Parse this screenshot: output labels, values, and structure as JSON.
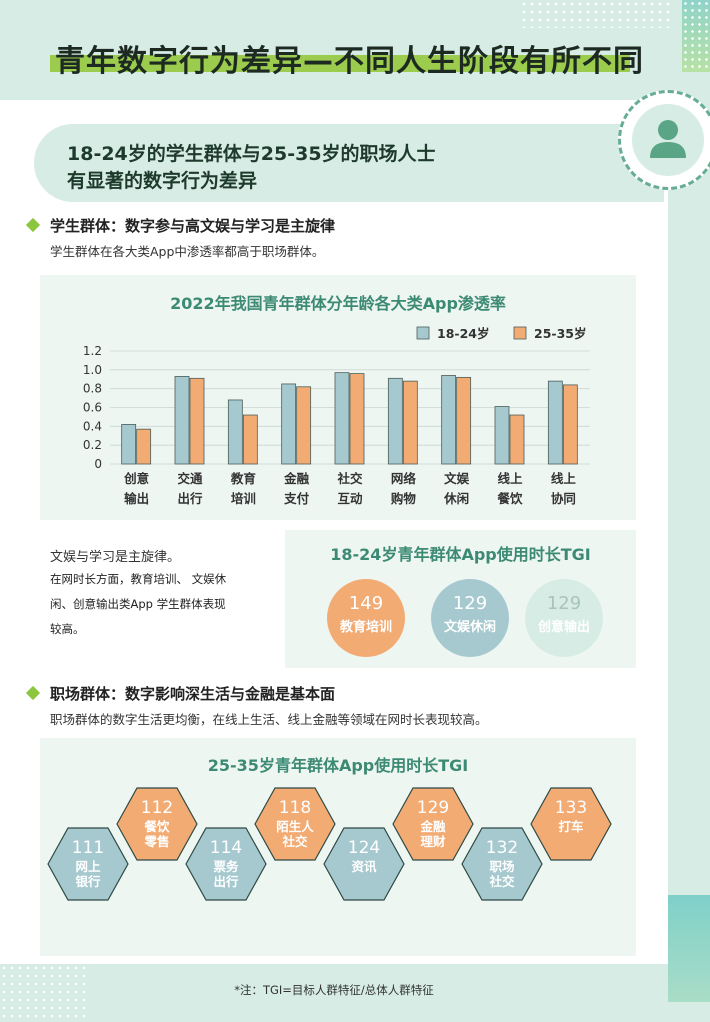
{
  "header": {
    "title": "青年数字行为差异—不同人生阶段有所不同"
  },
  "heading": {
    "line1": "18-24岁的学生群体与25-35岁的职场人士",
    "line2": "有显著的数字行为差异"
  },
  "students": {
    "title": "学生群体：数字参与高文娱与学习是主旋律",
    "text": "学生群体在各大类App中渗透率都高于职场群体。",
    "note_title": "文娱与学习是主旋律。",
    "note_lines": [
      "在网时长方面，教育培训、 文娱休",
      "闲、创意输出类App 学生群体表现",
      "较高。"
    ]
  },
  "workers": {
    "title": "职场群体：数字影响深生活与金融是基本面",
    "text": "职场群体的数字生活更均衡，在线上生活、线上金融等领域在网时长表现较高。"
  },
  "chart_data": {
    "type": "bar",
    "title": "2022年我国青年群体分年龄各大类App渗透率",
    "categories": [
      [
        "创意",
        "输出"
      ],
      [
        "交通",
        "出行"
      ],
      [
        "教育",
        "培训"
      ],
      [
        "金融",
        "支付"
      ],
      [
        "社交",
        "互动"
      ],
      [
        "网络",
        "购物"
      ],
      [
        "文娱",
        "休闲"
      ],
      [
        "线上",
        "餐饮"
      ],
      [
        "线上",
        "协同"
      ]
    ],
    "series": [
      {
        "name": "18-24岁",
        "color": "#a6c9cf",
        "values": [
          0.42,
          0.93,
          0.68,
          0.85,
          0.97,
          0.91,
          0.94,
          0.61,
          0.88
        ]
      },
      {
        "name": "25-35岁",
        "color": "#f3ab74",
        "values": [
          0.37,
          0.91,
          0.52,
          0.82,
          0.96,
          0.88,
          0.92,
          0.52,
          0.84
        ]
      }
    ],
    "yticks": [
      "1.2",
      "1.0",
      "0.8",
      "0.6",
      "0.4",
      "0.2",
      "0"
    ],
    "ylim": [
      0,
      1.2
    ],
    "legend": "top-right",
    "grid": true
  },
  "tgi_students": {
    "title": "18-24岁青年群体App使用时长TGI",
    "items": [
      {
        "value": "149",
        "label": "教育培训",
        "color": "#f3ab74"
      },
      {
        "value": "129",
        "label": "文娱休闲",
        "color": "#a6c9cf"
      },
      {
        "value": "129",
        "label": "创意输出",
        "color": "#d6ece4"
      }
    ]
  },
  "tgi_workers": {
    "title": "25-35岁青年群体App使用时长TGI",
    "items": [
      {
        "value": "111",
        "label": [
          "网上",
          "银行"
        ],
        "color": "#a6c9cf"
      },
      {
        "value": "112",
        "label": [
          "餐饮",
          "零售"
        ],
        "color": "#f3ab74"
      },
      {
        "value": "114",
        "label": [
          "票务",
          "出行"
        ],
        "color": "#a6c9cf"
      },
      {
        "value": "118",
        "label": [
          "陌生人",
          "社交"
        ],
        "color": "#f3ab74"
      },
      {
        "value": "124",
        "label": [
          "资讯"
        ],
        "color": "#a6c9cf"
      },
      {
        "value": "129",
        "label": [
          "金融",
          "理财"
        ],
        "color": "#f3ab74"
      },
      {
        "value": "132",
        "label": [
          "职场",
          "社交"
        ],
        "color": "#a6c9cf"
      },
      {
        "value": "133",
        "label": [
          "打车"
        ],
        "color": "#f3ab74"
      }
    ]
  },
  "footnote": "*注：TGI=目标人群特征/总体人群特征"
}
